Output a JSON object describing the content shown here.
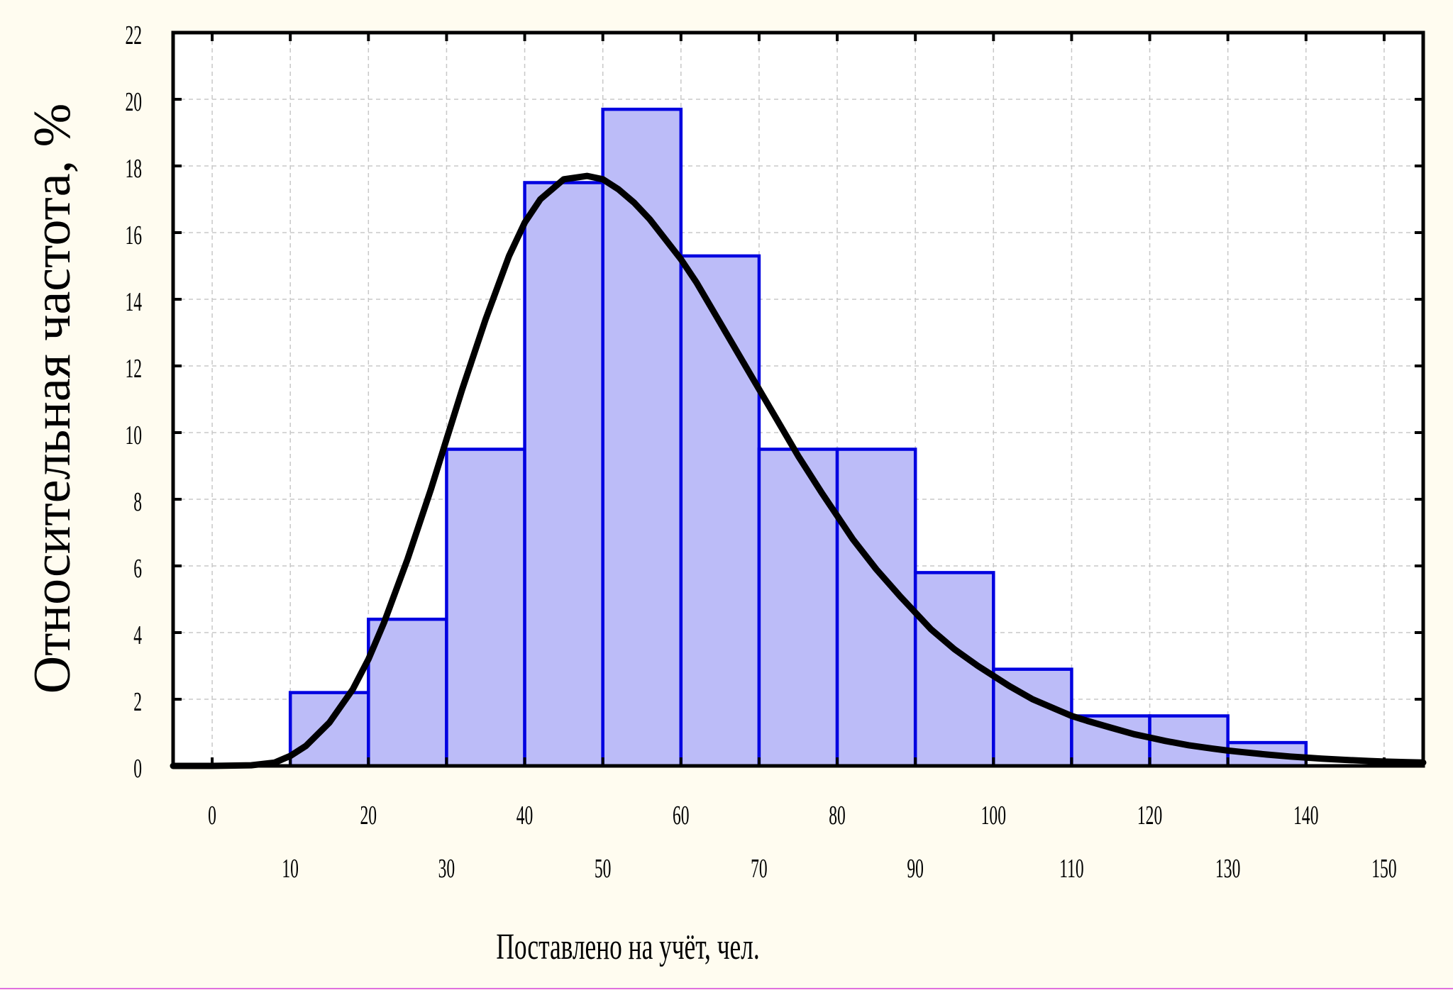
{
  "chart_data": {
    "type": "bar",
    "subtype": "histogram",
    "title": "",
    "xlabel": "Поставлено на учёт, чел.",
    "ylabel": "Относительная частота, %",
    "xlim": [
      -5,
      155
    ],
    "ylim": [
      0,
      22
    ],
    "x_ticks_row1": [
      0,
      20,
      40,
      60,
      80,
      100,
      120,
      140
    ],
    "x_ticks_row2": [
      10,
      30,
      50,
      70,
      90,
      110,
      130,
      150
    ],
    "y_ticks": [
      0,
      2,
      4,
      6,
      8,
      10,
      12,
      14,
      16,
      18,
      20,
      22
    ],
    "grid": true,
    "bins": [
      {
        "start": 10,
        "end": 20,
        "value": 2.2
      },
      {
        "start": 20,
        "end": 30,
        "value": 4.4
      },
      {
        "start": 30,
        "end": 40,
        "value": 9.5
      },
      {
        "start": 40,
        "end": 50,
        "value": 17.5
      },
      {
        "start": 50,
        "end": 60,
        "value": 19.7
      },
      {
        "start": 60,
        "end": 70,
        "value": 15.3
      },
      {
        "start": 70,
        "end": 80,
        "value": 9.5
      },
      {
        "start": 80,
        "end": 90,
        "value": 9.5
      },
      {
        "start": 90,
        "end": 100,
        "value": 5.8
      },
      {
        "start": 100,
        "end": 110,
        "value": 2.9
      },
      {
        "start": 110,
        "end": 120,
        "value": 1.5
      },
      {
        "start": 120,
        "end": 130,
        "value": 1.5
      },
      {
        "start": 130,
        "end": 140,
        "value": 0.7
      }
    ],
    "fitted_curve": {
      "x": [
        -5,
        0,
        5,
        8,
        10,
        12,
        15,
        18,
        20,
        22,
        25,
        28,
        30,
        32,
        35,
        38,
        40,
        42,
        45,
        48,
        50,
        52,
        54,
        56,
        58,
        60,
        62,
        65,
        68,
        70,
        72,
        75,
        78,
        80,
        82,
        85,
        88,
        90,
        92,
        95,
        98,
        100,
        102,
        105,
        108,
        110,
        112,
        115,
        118,
        120,
        122,
        125,
        128,
        130,
        132,
        135,
        138,
        140,
        142,
        145,
        148,
        150,
        153,
        155
      ],
      "y": [
        0,
        0,
        0.02,
        0.1,
        0.3,
        0.6,
        1.3,
        2.3,
        3.2,
        4.3,
        6.2,
        8.3,
        9.8,
        11.3,
        13.4,
        15.3,
        16.3,
        17.0,
        17.6,
        17.7,
        17.6,
        17.3,
        16.9,
        16.4,
        15.8,
        15.2,
        14.5,
        13.3,
        12.1,
        11.3,
        10.5,
        9.3,
        8.2,
        7.5,
        6.8,
        5.9,
        5.1,
        4.6,
        4.1,
        3.5,
        3.0,
        2.7,
        2.4,
        2.0,
        1.7,
        1.5,
        1.35,
        1.15,
        0.95,
        0.85,
        0.75,
        0.62,
        0.52,
        0.46,
        0.41,
        0.34,
        0.28,
        0.25,
        0.22,
        0.18,
        0.15,
        0.13,
        0.11,
        0.1
      ]
    },
    "colors": {
      "background": "#fffcf0",
      "plot_area": "#ffffff",
      "bar_fill": "#bcbcf8",
      "bar_stroke": "#0000e0",
      "curve": "#000000",
      "grid": "#c8c8c8",
      "frame": "#000000"
    }
  }
}
